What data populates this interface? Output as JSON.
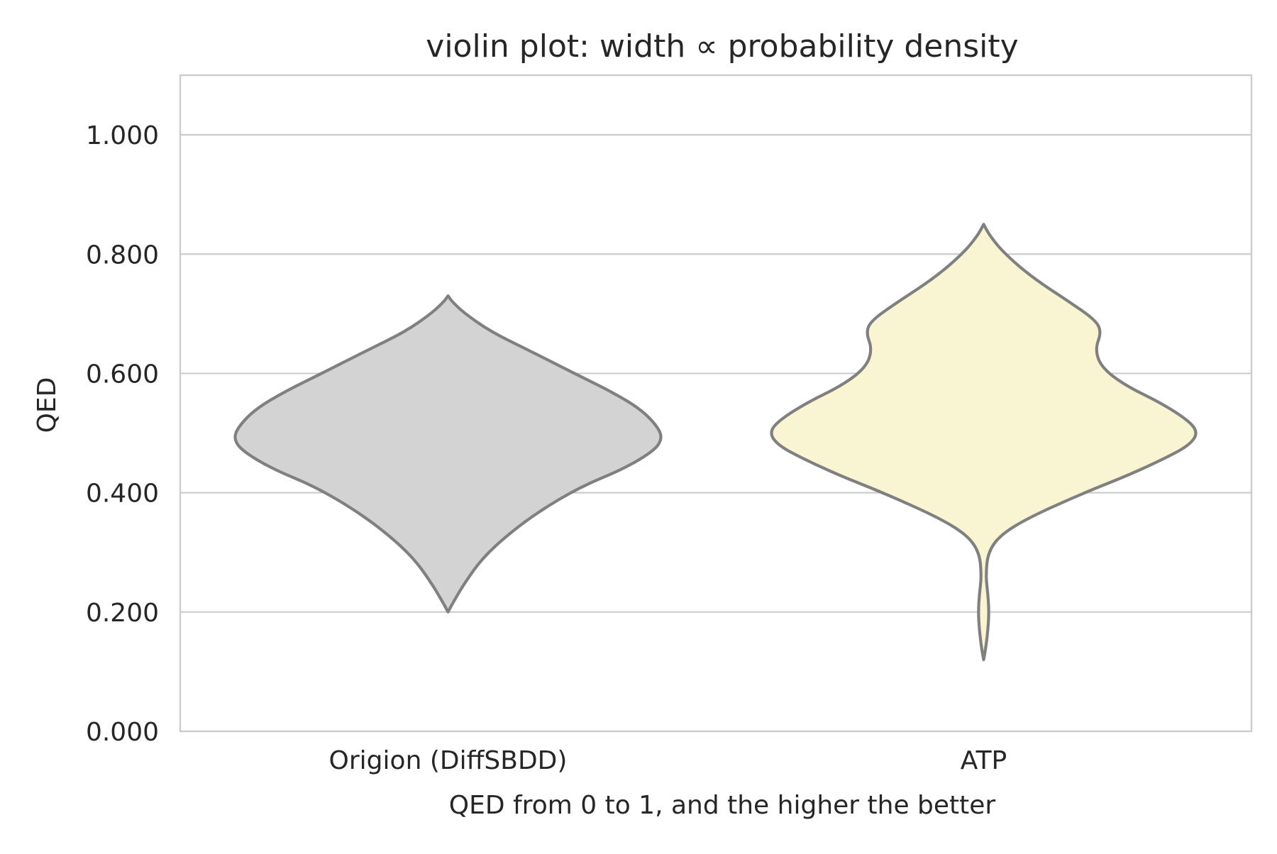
{
  "chart_data": {
    "type": "violin",
    "title": "violin plot: width ∝ probability density",
    "xlabel": "QED from 0 to 1, and the higher the better",
    "ylabel": "QED",
    "ylim": [
      0.0,
      1.1
    ],
    "yticks": [
      0.0,
      0.2,
      0.4,
      0.6,
      0.8,
      1.0
    ],
    "ytick_labels": [
      "0.000",
      "0.200",
      "0.400",
      "0.600",
      "0.800",
      "1.000"
    ],
    "grid": true,
    "categories": [
      "Origion (DiffSBDD)",
      "ATP"
    ],
    "series": [
      {
        "name": "Origion (DiffSBDD)",
        "fill": "#d3d3d3",
        "stroke": "#808080",
        "min": 0.2,
        "max": 0.73,
        "density_profile": [
          [
            0.2,
            0.0
          ],
          [
            0.22,
            0.03
          ],
          [
            0.25,
            0.08
          ],
          [
            0.29,
            0.16
          ],
          [
            0.33,
            0.28
          ],
          [
            0.37,
            0.43
          ],
          [
            0.41,
            0.62
          ],
          [
            0.44,
            0.82
          ],
          [
            0.47,
            0.96
          ],
          [
            0.49,
            1.0
          ],
          [
            0.51,
            0.98
          ],
          [
            0.54,
            0.9
          ],
          [
            0.57,
            0.76
          ],
          [
            0.6,
            0.59
          ],
          [
            0.64,
            0.37
          ],
          [
            0.67,
            0.2
          ],
          [
            0.7,
            0.08
          ],
          [
            0.72,
            0.02
          ],
          [
            0.73,
            0.0
          ]
        ]
      },
      {
        "name": "ATP",
        "fill": "#f9f5d3",
        "stroke": "#808080",
        "min": 0.12,
        "max": 0.85,
        "density_profile": [
          [
            0.12,
            0.0
          ],
          [
            0.14,
            0.01
          ],
          [
            0.17,
            0.02
          ],
          [
            0.2,
            0.025
          ],
          [
            0.23,
            0.02
          ],
          [
            0.26,
            0.01
          ],
          [
            0.3,
            0.02
          ],
          [
            0.33,
            0.08
          ],
          [
            0.36,
            0.22
          ],
          [
            0.4,
            0.47
          ],
          [
            0.43,
            0.68
          ],
          [
            0.46,
            0.86
          ],
          [
            0.48,
            0.96
          ],
          [
            0.5,
            1.0
          ],
          [
            0.52,
            0.96
          ],
          [
            0.55,
            0.83
          ],
          [
            0.58,
            0.66
          ],
          [
            0.61,
            0.55
          ],
          [
            0.64,
            0.52
          ],
          [
            0.67,
            0.55
          ],
          [
            0.69,
            0.52
          ],
          [
            0.72,
            0.4
          ],
          [
            0.76,
            0.23
          ],
          [
            0.8,
            0.1
          ],
          [
            0.83,
            0.03
          ],
          [
            0.85,
            0.0
          ]
        ]
      }
    ]
  }
}
